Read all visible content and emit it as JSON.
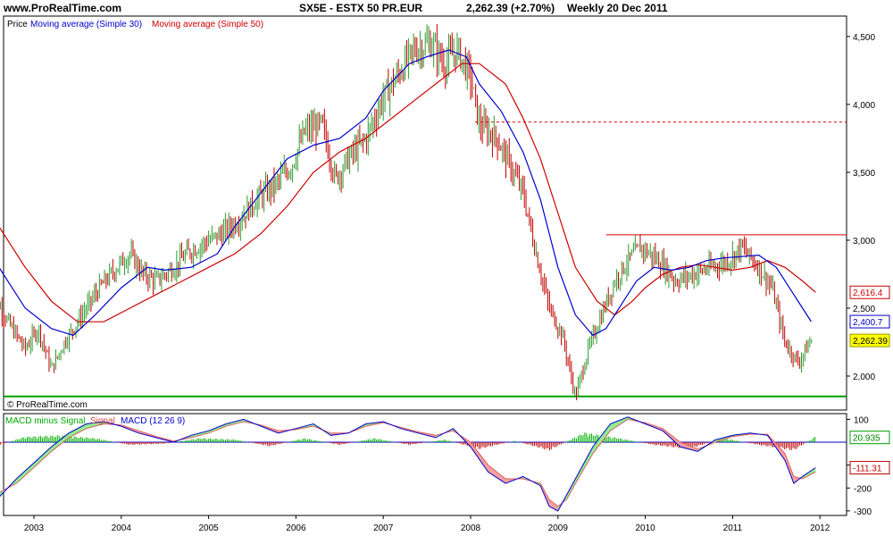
{
  "header": {
    "site": "www.ProRealTime.com",
    "instrument": "SX5E - ESTX 50 PR.EUR",
    "quote": "2,262.39 (+2.70%)",
    "period": "Weekly  20 Dec 2011"
  },
  "watermark": "© ProRealTime.com",
  "colors": {
    "ma30": "#0000cc",
    "ma50": "#cc0000",
    "bar_up": "#2e9a2e",
    "bar_down": "#c00000",
    "support": "#00a000",
    "resistance": "#dd0000",
    "macd_line": "#0000cc",
    "signal_line": "#e06060",
    "macd_hist": "#00b000",
    "macd_fill_up": "#90ee90",
    "macd_fill_down": "#f4a0a0",
    "last_price_bg": "#ffff00"
  },
  "chart_data": [
    {
      "type": "line",
      "panel": "price",
      "legend": [
        "Price",
        "Moving average (Simple 30)",
        "Moving average (Simple 50)"
      ],
      "x_tick_labels": [
        "2003",
        "2004",
        "2005",
        "2006",
        "2007",
        "2008",
        "2009",
        "2010",
        "2011",
        "2012"
      ],
      "y_tick_labels": [
        "4,500",
        "4,000",
        "3,500",
        "3,000",
        "2,500",
        "2,000"
      ],
      "ylim": [
        1750,
        4650
      ],
      "series": [
        {
          "name": "Price",
          "x": [
            2002.5,
            2002.7,
            2002.9,
            2003.05,
            2003.2,
            2003.35,
            2003.55,
            2003.75,
            2003.95,
            2004.1,
            2004.25,
            2004.4,
            2004.6,
            2004.75,
            2004.95,
            2005.15,
            2005.35,
            2005.55,
            2005.75,
            2005.95,
            2006.1,
            2006.3,
            2006.45,
            2006.6,
            2006.8,
            2007.0,
            2007.2,
            2007.35,
            2007.55,
            2007.7,
            2007.85,
            2008.0,
            2008.1,
            2008.3,
            2008.45,
            2008.6,
            2008.75,
            2008.9,
            2009.05,
            2009.2,
            2009.35,
            2009.5,
            2009.65,
            2009.8,
            2009.95,
            2010.15,
            2010.35,
            2010.55,
            2010.75,
            2010.95,
            2011.1,
            2011.3,
            2011.45,
            2011.6,
            2011.75,
            2011.9
          ],
          "values": [
            2650,
            2400,
            2200,
            2350,
            2050,
            2250,
            2450,
            2650,
            2800,
            2900,
            2750,
            2700,
            2800,
            2900,
            2980,
            3050,
            3150,
            3300,
            3400,
            3550,
            3800,
            3850,
            3450,
            3600,
            3750,
            4050,
            4250,
            4400,
            4450,
            4300,
            4400,
            4200,
            3850,
            3750,
            3550,
            3350,
            2900,
            2500,
            2300,
            1850,
            2200,
            2450,
            2700,
            2850,
            2950,
            2850,
            2700,
            2750,
            2800,
            2850,
            2950,
            2800,
            2650,
            2250,
            2100,
            2262.39
          ]
        },
        {
          "name": "Moving average (Simple 30)",
          "x": [
            2002.3,
            2002.6,
            2002.9,
            2003.2,
            2003.45,
            2003.7,
            2004.0,
            2004.3,
            2004.5,
            2004.8,
            2005.1,
            2005.3,
            2005.6,
            2005.9,
            2006.2,
            2006.5,
            2006.8,
            2007.0,
            2007.3,
            2007.5,
            2007.75,
            2007.95,
            2008.1,
            2008.35,
            2008.6,
            2008.8,
            2009.0,
            2009.2,
            2009.4,
            2009.55,
            2009.75,
            2009.9,
            2010.1,
            2010.3,
            2010.5,
            2010.7,
            2010.9,
            2011.1,
            2011.3,
            2011.5,
            2011.7,
            2011.9
          ],
          "values": [
            3250,
            2800,
            2500,
            2350,
            2300,
            2450,
            2650,
            2800,
            2780,
            2800,
            2900,
            3100,
            3350,
            3600,
            3700,
            3750,
            3900,
            4100,
            4300,
            4350,
            4400,
            4350,
            4150,
            3950,
            3650,
            3300,
            2800,
            2450,
            2300,
            2350,
            2550,
            2700,
            2800,
            2780,
            2800,
            2850,
            2870,
            2880,
            2890,
            2800,
            2600,
            2400.7
          ]
        },
        {
          "name": "Moving average (Simple 50)",
          "x": [
            2002.3,
            2002.6,
            2002.9,
            2003.2,
            2003.5,
            2003.8,
            2004.1,
            2004.4,
            2004.7,
            2005.0,
            2005.3,
            2005.6,
            2005.9,
            2006.2,
            2006.5,
            2006.8,
            2007.1,
            2007.4,
            2007.7,
            2007.9,
            2008.1,
            2008.4,
            2008.6,
            2008.8,
            2009.0,
            2009.2,
            2009.45,
            2009.65,
            2009.85,
            2010.0,
            2010.2,
            2010.4,
            2010.6,
            2010.8,
            2011.0,
            2011.2,
            2011.4,
            2011.6,
            2011.8,
            2011.95
          ],
          "values": [
            3400,
            3100,
            2800,
            2550,
            2400,
            2400,
            2500,
            2600,
            2700,
            2800,
            2900,
            3050,
            3250,
            3500,
            3650,
            3750,
            3900,
            4050,
            4200,
            4300,
            4300,
            4150,
            3900,
            3600,
            3200,
            2800,
            2550,
            2450,
            2550,
            2650,
            2750,
            2800,
            2820,
            2800,
            2780,
            2800,
            2850,
            2800,
            2700,
            2616.4
          ]
        }
      ],
      "reference_lines": {
        "support": 1850,
        "resistance_dashed": 3870,
        "resistance_solid": 3040
      },
      "last_values": {
        "ma50": "2,616.4",
        "ma30": "2,400.7",
        "price": "2,262.39"
      }
    },
    {
      "type": "line",
      "panel": "macd",
      "legend": [
        "MACD minus Signal",
        "Signal",
        "MACD (12 26 9)"
      ],
      "y_tick_labels": [
        "100",
        "-100",
        "-200",
        "-300"
      ],
      "ylim": [
        -320,
        125
      ],
      "series": [
        {
          "name": "MACD (12 26 9)",
          "x": [
            2002.4,
            2002.6,
            2002.8,
            2003.0,
            2003.2,
            2003.4,
            2003.6,
            2003.8,
            2004.0,
            2004.2,
            2004.4,
            2004.6,
            2004.8,
            2005.0,
            2005.2,
            2005.4,
            2005.6,
            2005.8,
            2006.0,
            2006.2,
            2006.4,
            2006.6,
            2006.8,
            2007.0,
            2007.2,
            2007.4,
            2007.6,
            2007.8,
            2008.0,
            2008.2,
            2008.4,
            2008.6,
            2008.8,
            2008.9,
            2009.0,
            2009.1,
            2009.2,
            2009.4,
            2009.6,
            2009.8,
            2010.0,
            2010.2,
            2010.4,
            2010.6,
            2010.8,
            2011.0,
            2011.2,
            2011.4,
            2011.6,
            2011.7,
            2011.8,
            2011.95
          ],
          "values": [
            -220,
            -240,
            -160,
            -90,
            -20,
            40,
            80,
            90,
            70,
            40,
            20,
            0,
            30,
            50,
            80,
            100,
            70,
            40,
            60,
            80,
            30,
            40,
            80,
            90,
            60,
            40,
            20,
            60,
            -20,
            -130,
            -180,
            -150,
            -190,
            -280,
            -300,
            -230,
            -160,
            -20,
            80,
            110,
            80,
            50,
            -20,
            -40,
            10,
            30,
            40,
            30,
            -80,
            -180,
            -150,
            -111.31
          ]
        },
        {
          "name": "Signal",
          "x": [
            2002.4,
            2002.6,
            2002.8,
            2003.0,
            2003.2,
            2003.4,
            2003.6,
            2003.8,
            2004.0,
            2004.2,
            2004.4,
            2004.6,
            2004.8,
            2005.0,
            2005.2,
            2005.4,
            2005.6,
            2005.8,
            2006.0,
            2006.2,
            2006.4,
            2006.6,
            2006.8,
            2007.0,
            2007.2,
            2007.4,
            2007.6,
            2007.8,
            2008.0,
            2008.2,
            2008.4,
            2008.6,
            2008.8,
            2008.9,
            2009.0,
            2009.1,
            2009.2,
            2009.4,
            2009.6,
            2009.8,
            2010.0,
            2010.2,
            2010.4,
            2010.6,
            2010.8,
            2011.0,
            2011.2,
            2011.4,
            2011.6,
            2011.7,
            2011.8,
            2011.95
          ],
          "values": [
            -200,
            -220,
            -180,
            -110,
            -40,
            20,
            60,
            80,
            75,
            50,
            25,
            5,
            20,
            40,
            70,
            90,
            75,
            50,
            55,
            70,
            40,
            40,
            70,
            85,
            65,
            45,
            30,
            50,
            0,
            -100,
            -160,
            -160,
            -180,
            -250,
            -280,
            -250,
            -180,
            -50,
            50,
            100,
            85,
            60,
            0,
            -30,
            0,
            25,
            35,
            35,
            -50,
            -150,
            -160,
            -130
          ]
        },
        {
          "name": "MACD minus Signal",
          "x": [
            2002.5,
            2002.9,
            2003.3,
            2003.7,
            2004.1,
            2004.5,
            2004.9,
            2005.3,
            2005.7,
            2006.1,
            2006.5,
            2006.9,
            2007.3,
            2007.7,
            2008.1,
            2008.5,
            2008.9,
            2009.3,
            2009.7,
            2010.1,
            2010.5,
            2010.9,
            2011.3,
            2011.7,
            2011.95
          ],
          "values": [
            -20,
            20,
            25,
            15,
            -10,
            -5,
            15,
            10,
            -15,
            15,
            -10,
            15,
            -10,
            10,
            -25,
            5,
            -30,
            35,
            15,
            -10,
            -25,
            15,
            -10,
            -30,
            20.935
          ]
        }
      ],
      "last_values": {
        "hist": "20.935",
        "macd": "-111.31"
      }
    }
  ]
}
